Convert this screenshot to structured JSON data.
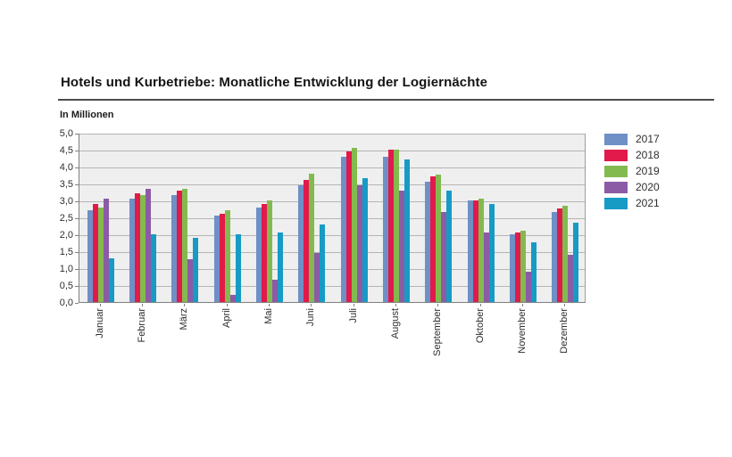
{
  "chart_data": {
    "type": "bar",
    "title": "Hotels und Kurbetriebe: Monatliche Entwicklung der Logiernächte",
    "ylabel": "In Millionen",
    "xlabel": "",
    "categories": [
      "Januar",
      "Februar",
      "März",
      "April",
      "Mai",
      "Juni",
      "Juli",
      "August",
      "September",
      "Oktober",
      "November",
      "Dezember"
    ],
    "series": [
      {
        "name": "2017",
        "color": "#6F90C6",
        "values": [
          2.7,
          3.05,
          3.15,
          2.55,
          2.8,
          3.45,
          4.3,
          4.3,
          3.55,
          3.0,
          2.0,
          2.65
        ]
      },
      {
        "name": "2018",
        "color": "#E2194B",
        "values": [
          2.9,
          3.2,
          3.3,
          2.6,
          2.9,
          3.6,
          4.45,
          4.5,
          3.7,
          3.0,
          2.05,
          2.75
        ]
      },
      {
        "name": "2019",
        "color": "#83BA4F",
        "values": [
          2.8,
          3.15,
          3.35,
          2.7,
          3.0,
          3.8,
          4.55,
          4.5,
          3.75,
          3.05,
          2.1,
          2.85
        ]
      },
      {
        "name": "2020",
        "color": "#8C5BA6",
        "values": [
          3.05,
          3.35,
          1.25,
          0.2,
          0.65,
          1.45,
          3.45,
          3.3,
          2.65,
          2.05,
          0.9,
          1.4
        ]
      },
      {
        "name": "2021",
        "color": "#169BC5",
        "values": [
          1.3,
          2.0,
          1.9,
          2.0,
          2.05,
          2.3,
          3.65,
          4.2,
          3.3,
          2.9,
          1.75,
          2.35
        ]
      }
    ],
    "ylim": [
      0,
      5
    ],
    "ytick_step": 0.5,
    "ytick_labels": [
      "0,0",
      "0,5",
      "1,0",
      "1,5",
      "2,0",
      "2,5",
      "3,0",
      "3,5",
      "4,0",
      "4,5",
      "5,0"
    ],
    "grid": true,
    "legend_position": "right",
    "decimal_style": "comma"
  }
}
